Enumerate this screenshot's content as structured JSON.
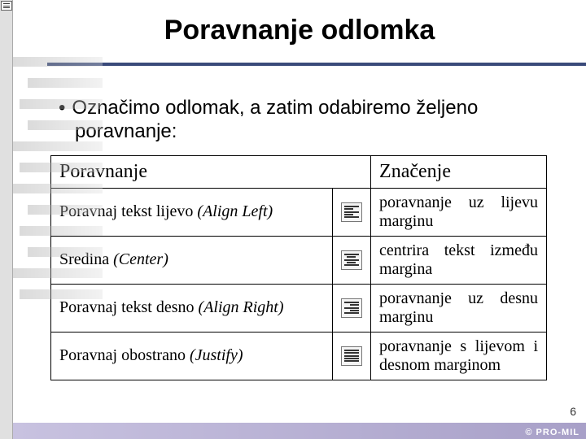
{
  "title": "Poravnanje odlomka",
  "bullet_char": "•",
  "body_text": "Označimo odlomak, a zatim odabiremo željeno poravnanje:",
  "table": {
    "header_col1": "Poravnanje",
    "header_col2": "Značenje",
    "rows": [
      {
        "label_plain": "Poravnaj tekst lijevo ",
        "label_italic": "(Align Left)",
        "icon_type": "left",
        "meaning": "poravnanje uz lijevu marginu"
      },
      {
        "label_plain": "Sredina ",
        "label_italic": "(Center)",
        "icon_type": "center",
        "meaning": "centrira tekst između margina"
      },
      {
        "label_plain": "Poravnaj tekst desno ",
        "label_italic": "(Align Right)",
        "icon_type": "right",
        "meaning": "poravnanje uz desnu marginu"
      },
      {
        "label_plain": "Poravnaj obostrano ",
        "label_italic": "(Justify)",
        "icon_type": "justify",
        "meaning": "poravnanje s lijevom i desnom marginom"
      }
    ]
  },
  "page_number": "6",
  "footer_logo": "© PRO-MIL",
  "colors": {
    "title_underline": "#3a4a7a",
    "footer_bg_left": "#c8c2e0",
    "footer_bg_right": "#a8a0c8",
    "background": "#ffffff"
  }
}
